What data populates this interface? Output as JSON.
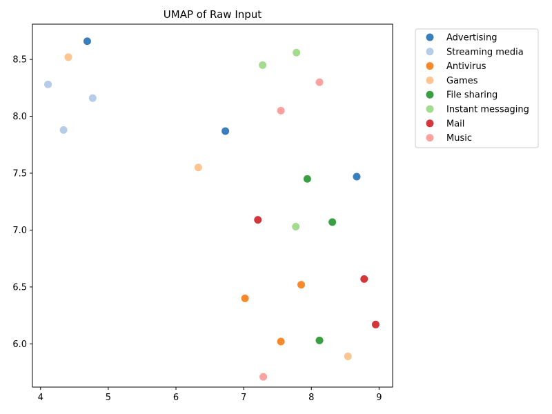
{
  "chart_data": {
    "type": "scatter",
    "title": "UMAP of Raw Input",
    "xlabel": "",
    "ylabel": "",
    "xlim": [
      3.88,
      9.2
    ],
    "ylim": [
      5.62,
      8.81
    ],
    "x_ticks": [
      4,
      5,
      6,
      7,
      8,
      9
    ],
    "y_ticks": [
      6.0,
      6.5,
      7.0,
      7.5,
      8.0,
      8.5
    ],
    "x_tick_labels": [
      "4",
      "5",
      "6",
      "7",
      "8",
      "9"
    ],
    "y_tick_labels": [
      "6.0",
      "6.5",
      "7.0",
      "7.5",
      "8.0",
      "8.5"
    ],
    "grid": false,
    "legend_position": "outside-top-right",
    "series": [
      {
        "name": "Advertising",
        "color": "#3a7fbb",
        "points": [
          [
            4.69,
            8.66
          ],
          [
            6.73,
            7.87
          ],
          [
            8.67,
            7.47
          ]
        ]
      },
      {
        "name": "Streaming media",
        "color": "#b5cde8",
        "points": [
          [
            4.11,
            8.28
          ],
          [
            4.77,
            8.16
          ],
          [
            4.34,
            7.88
          ]
        ]
      },
      {
        "name": "Antivirus",
        "color": "#f7892b",
        "points": [
          [
            7.85,
            6.52
          ],
          [
            7.02,
            6.4
          ],
          [
            7.55,
            6.02
          ]
        ]
      },
      {
        "name": "Games",
        "color": "#fcc591",
        "points": [
          [
            4.41,
            8.52
          ],
          [
            6.33,
            7.55
          ],
          [
            8.54,
            5.89
          ]
        ]
      },
      {
        "name": "File sharing",
        "color": "#3a9f43",
        "points": [
          [
            7.94,
            7.45
          ],
          [
            8.31,
            7.07
          ],
          [
            8.12,
            6.03
          ]
        ]
      },
      {
        "name": "Instant messaging",
        "color": "#a3db8f",
        "points": [
          [
            7.78,
            8.56
          ],
          [
            7.28,
            8.45
          ],
          [
            7.77,
            7.03
          ]
        ]
      },
      {
        "name": "Mail",
        "color": "#d4373a",
        "points": [
          [
            7.21,
            7.09
          ],
          [
            8.78,
            6.57
          ],
          [
            8.95,
            6.17
          ]
        ]
      },
      {
        "name": "Music",
        "color": "#fba2a1",
        "points": [
          [
            8.12,
            8.3
          ],
          [
            7.55,
            8.05
          ],
          [
            7.29,
            5.71
          ]
        ]
      }
    ]
  }
}
